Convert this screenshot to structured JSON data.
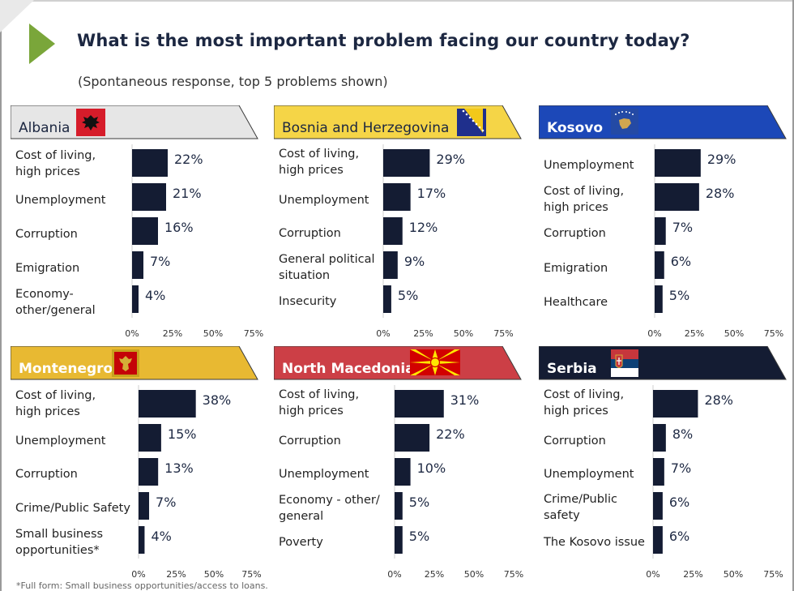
{
  "title": "What is the most important problem facing our country today?",
  "subtitle": "(Spontaneous response, top 5 problems shown)",
  "footnote": "*Full form: Small business opportunities/access to loans.",
  "colors": {
    "bar": "#141c33",
    "accent_green": "#7aa63a",
    "albania_banner": "#e6e6e6",
    "bosnia_banner": "#f5d547",
    "kosovo_banner": "#1c48b8",
    "montenegro_banner": "#e8b932",
    "macedonia_banner": "#cc3f46",
    "serbia_banner": "#141c33"
  },
  "chart_data": [
    {
      "type": "bar",
      "orientation": "horizontal",
      "title": "Albania",
      "flag": "albania-flag",
      "categories": [
        "Cost of living,\nhigh prices",
        "Unemployment",
        "Corruption",
        "Emigration",
        "Economy-\nother/general"
      ],
      "values": [
        22,
        21,
        16,
        7,
        4
      ],
      "value_labels": [
        "22%",
        "21%",
        "16%",
        "7%",
        "4%"
      ],
      "xlim": [
        0,
        75
      ],
      "xticks": [
        "0%",
        "25%",
        "50%",
        "75%"
      ]
    },
    {
      "type": "bar",
      "orientation": "horizontal",
      "title": "Bosnia and Herzegovina",
      "flag": "bosnia-flag",
      "categories": [
        "Cost of living,\nhigh prices",
        "Unemployment",
        "Corruption",
        "General political\nsituation",
        "Insecurity"
      ],
      "values": [
        29,
        17,
        12,
        9,
        5
      ],
      "value_labels": [
        "29%",
        "17%",
        "12%",
        "9%",
        "5%"
      ],
      "xlim": [
        0,
        75
      ],
      "xticks": [
        "0%",
        "25%",
        "50%",
        "75%"
      ]
    },
    {
      "type": "bar",
      "orientation": "horizontal",
      "title": "Kosovo",
      "flag": "kosovo-flag",
      "categories": [
        "Unemployment",
        "Cost of living,\nhigh prices",
        "Corruption",
        "Emigration",
        "Healthcare"
      ],
      "values": [
        29,
        28,
        7,
        6,
        5
      ],
      "value_labels": [
        "29%",
        "28%",
        "7%",
        "6%",
        "5%"
      ],
      "xlim": [
        0,
        75
      ],
      "xticks": [
        "0%",
        "25%",
        "50%",
        "75%"
      ]
    },
    {
      "type": "bar",
      "orientation": "horizontal",
      "title": "Montenegro",
      "flag": "montenegro-flag",
      "categories": [
        "Cost of living,\nhigh prices",
        "Unemployment",
        "Corruption",
        "Crime/Public Safety",
        "Small business\nopportunities*"
      ],
      "values": [
        38,
        15,
        13,
        7,
        4
      ],
      "value_labels": [
        "38%",
        "15%",
        "13%",
        "7%",
        "4%"
      ],
      "xlim": [
        0,
        75
      ],
      "xticks": [
        "0%",
        "25%",
        "50%",
        "75%"
      ]
    },
    {
      "type": "bar",
      "orientation": "horizontal",
      "title": "North Macedonia",
      "flag": "north-macedonia-flag",
      "categories": [
        "Cost of living,\nhigh prices",
        "Corruption",
        "Unemployment",
        "Economy - other/\ngeneral",
        "Poverty"
      ],
      "values": [
        31,
        22,
        10,
        5,
        5
      ],
      "value_labels": [
        "31%",
        "22%",
        "10%",
        "5%",
        "5%"
      ],
      "xlim": [
        0,
        75
      ],
      "xticks": [
        "0%",
        "25%",
        "50%",
        "75%"
      ]
    },
    {
      "type": "bar",
      "orientation": "horizontal",
      "title": "Serbia",
      "flag": "serbia-flag",
      "categories": [
        "Cost of living,\nhigh prices",
        "Corruption",
        "Unemployment",
        "Crime/Public\nsafety",
        "The Kosovo issue"
      ],
      "values": [
        28,
        8,
        7,
        6,
        6
      ],
      "value_labels": [
        "28%",
        "8%",
        "7%",
        "6%",
        "6%"
      ],
      "xlim": [
        0,
        75
      ],
      "xticks": [
        "0%",
        "25%",
        "50%",
        "75%"
      ]
    }
  ]
}
